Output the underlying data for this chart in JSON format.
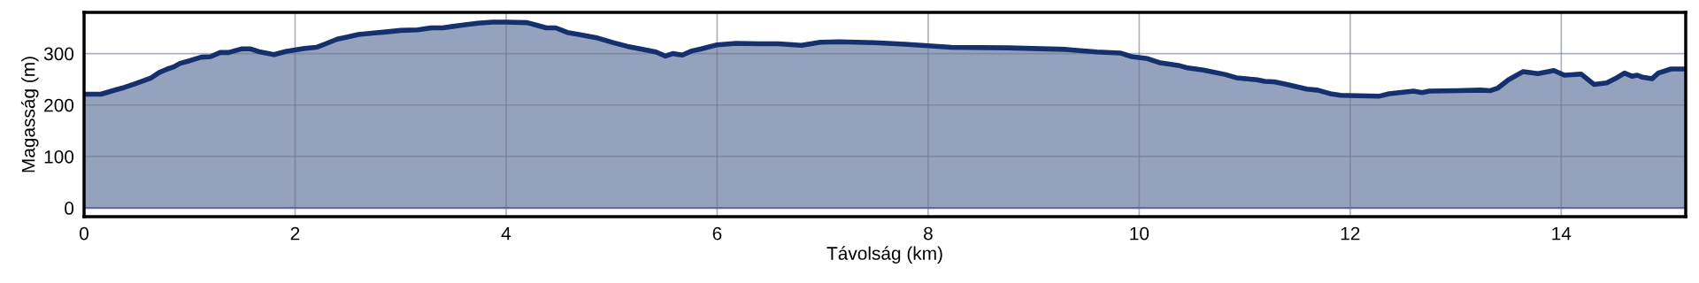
{
  "chart_data": {
    "type": "area",
    "xlabel": "Távolság (km)",
    "ylabel": "Magasság (m)",
    "xlim": [
      0,
      15.18
    ],
    "ylim": [
      -17,
      380
    ],
    "xticks": [
      0,
      2,
      4,
      6,
      8,
      10,
      12,
      14
    ],
    "yticks": [
      0,
      100,
      200,
      300
    ],
    "grid": true,
    "legend": false,
    "ref_lines": [
      {
        "axis": "y",
        "value": 0,
        "color": "#5a6e9a"
      }
    ],
    "series": [
      {
        "color": "#15306e",
        "x": [
          0,
          0.16,
          0.31,
          0.38,
          0.48,
          0.55,
          0.63,
          0.71,
          0.79,
          0.85,
          0.91,
          1.0,
          1.11,
          1.2,
          1.29,
          1.37,
          1.49,
          1.58,
          1.67,
          1.8,
          1.91,
          2.0,
          2.09,
          2.2,
          2.29,
          2.4,
          2.49,
          2.6,
          2.75,
          2.86,
          3.0,
          3.16,
          3.29,
          3.4,
          3.58,
          3.73,
          3.87,
          4.0,
          4.2,
          4.29,
          4.38,
          4.47,
          4.58,
          4.69,
          4.87,
          5.02,
          5.15,
          5.27,
          5.42,
          5.51,
          5.58,
          5.67,
          5.76,
          5.85,
          6.0,
          6.18,
          6.4,
          6.58,
          6.8,
          6.98,
          7.16,
          7.49,
          7.78,
          8.0,
          8.22,
          8.76,
          9.31,
          9.6,
          9.82,
          9.93,
          10.08,
          10.2,
          10.37,
          10.46,
          10.61,
          10.82,
          10.92,
          11.12,
          11.19,
          11.28,
          11.4,
          11.59,
          11.69,
          11.81,
          11.91,
          12.27,
          12.37,
          12.6,
          12.68,
          12.75,
          13.02,
          13.23,
          13.33,
          13.4,
          13.5,
          13.64,
          13.78,
          13.93,
          14.03,
          14.19,
          14.31,
          14.43,
          14.51,
          14.6,
          14.67,
          14.72,
          14.77,
          14.86,
          14.92,
          15.04,
          15.18
        ],
        "values": [
          221,
          221,
          230,
          234,
          241,
          246,
          252,
          263,
          270,
          274,
          281,
          286,
          293,
          294,
          302,
          302,
          309,
          309,
          303,
          298,
          304,
          307,
          310,
          312,
          319,
          328,
          332,
          337,
          340,
          342,
          345,
          346,
          350,
          350,
          355,
          359,
          361,
          361,
          360,
          355,
          350,
          350,
          341,
          337,
          330,
          321,
          314,
          309,
          303,
          295,
          300,
          297,
          305,
          309,
          317,
          320,
          319,
          319,
          316,
          322,
          323,
          321,
          318,
          315,
          312,
          311,
          308,
          303,
          301,
          294,
          290,
          282,
          277,
          272,
          268,
          259,
          253,
          249,
          246,
          245,
          240,
          231,
          229,
          222,
          219,
          217,
          222,
          227,
          224,
          227,
          228,
          229,
          228,
          233,
          249,
          265,
          261,
          267,
          258,
          260,
          240,
          243,
          251,
          262,
          256,
          258,
          254,
          251,
          262,
          270,
          270
        ]
      }
    ]
  }
}
